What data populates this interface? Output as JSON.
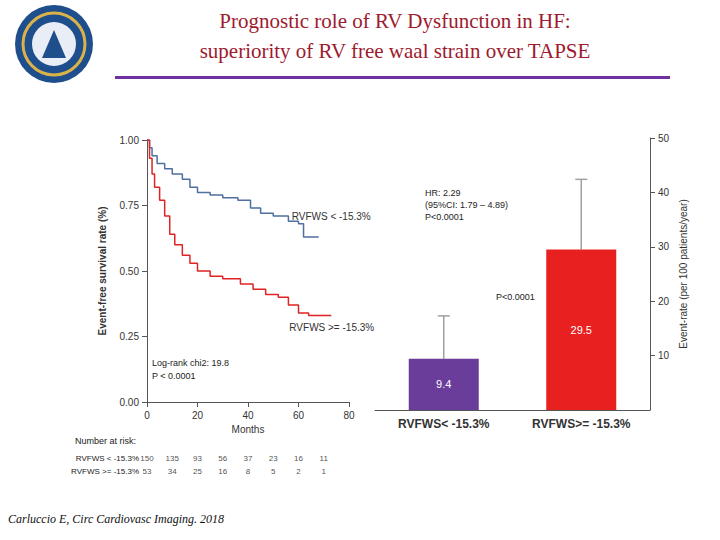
{
  "slide_title": [
    "Prognostic role of RV Dysfunction in HF:",
    "superiority of RV free waal strain over TAPSE"
  ],
  "citation": "Carluccio E, Circ Cardiovasc Imaging. 2018",
  "chart_data": [
    {
      "type": "line",
      "line_style": "step",
      "x_label": "Months",
      "y_label": "Event-free survival rate (%)",
      "xlim": [
        0,
        80
      ],
      "xticks": [
        0,
        20,
        40,
        60,
        80
      ],
      "ylim": [
        0,
        1
      ],
      "yticks": [
        {
          "value": 0,
          "label": "0.00"
        },
        {
          "value": 0.25,
          "label": "0.25"
        },
        {
          "value": 0.5,
          "label": "0.50"
        },
        {
          "value": 0.75,
          "label": "0.75"
        },
        {
          "value": 1,
          "label": "1.00"
        }
      ],
      "series": [
        {
          "name": "RVFWS < -15.3%",
          "color": "#4f6f9f",
          "x": [
            0,
            1,
            2,
            4,
            7,
            10,
            14,
            17,
            20,
            25,
            30,
            36,
            41,
            45,
            50,
            56,
            60,
            62,
            68
          ],
          "values": [
            1,
            0.97,
            0.94,
            0.91,
            0.89,
            0.87,
            0.85,
            0.82,
            0.8,
            0.79,
            0.78,
            0.77,
            0.74,
            0.72,
            0.71,
            0.69,
            0.68,
            0.63,
            0.63
          ]
        },
        {
          "name": "RVFWS >= -15.3%",
          "color": "#e02323",
          "x": [
            0,
            1,
            2,
            3,
            5,
            7,
            9,
            11,
            14,
            17,
            20,
            25,
            30,
            37,
            42,
            47,
            52,
            56,
            60,
            64,
            73
          ],
          "values": [
            1,
            0.93,
            0.87,
            0.82,
            0.77,
            0.71,
            0.64,
            0.6,
            0.56,
            0.53,
            0.5,
            0.48,
            0.47,
            0.45,
            0.43,
            0.41,
            0.4,
            0.37,
            0.34,
            0.33,
            0.33
          ]
        }
      ],
      "annotations": [
        "Log-rank chi2: 19.8",
        "P < 0.0001"
      ],
      "risk_table": {
        "title": "Number at risk:",
        "x": [
          0,
          10,
          20,
          30,
          40,
          50,
          60,
          70
        ],
        "rows": [
          {
            "name": "RVFWS < -15.3%",
            "values": [
              150,
              135,
              93,
              56,
              37,
              23,
              16,
              11
            ]
          },
          {
            "name": "RVFWS >= -15.3%",
            "values": [
              53,
              34,
              25,
              16,
              8,
              5,
              2,
              1
            ]
          }
        ]
      }
    },
    {
      "type": "bar",
      "categories": [
        "RVFWS< -15.3%",
        "RVFWS>= -15.3%"
      ],
      "values": [
        9.4,
        29.5
      ],
      "colors": [
        "#6a3d9b",
        "#e8201f"
      ],
      "error_plus": [
        7.9,
        12.9
      ],
      "y_label": "Event-rate (per 100 patients/year)",
      "ylim": [
        0,
        50
      ],
      "yticks": [
        10,
        20,
        30,
        40,
        50
      ],
      "data_labels": true,
      "hr_annotation": [
        "HR: 2.29",
        "(95%CI: 1.79 – 4.89)",
        "P<0.0001"
      ],
      "comparison_label": "P<0.0001"
    }
  ]
}
